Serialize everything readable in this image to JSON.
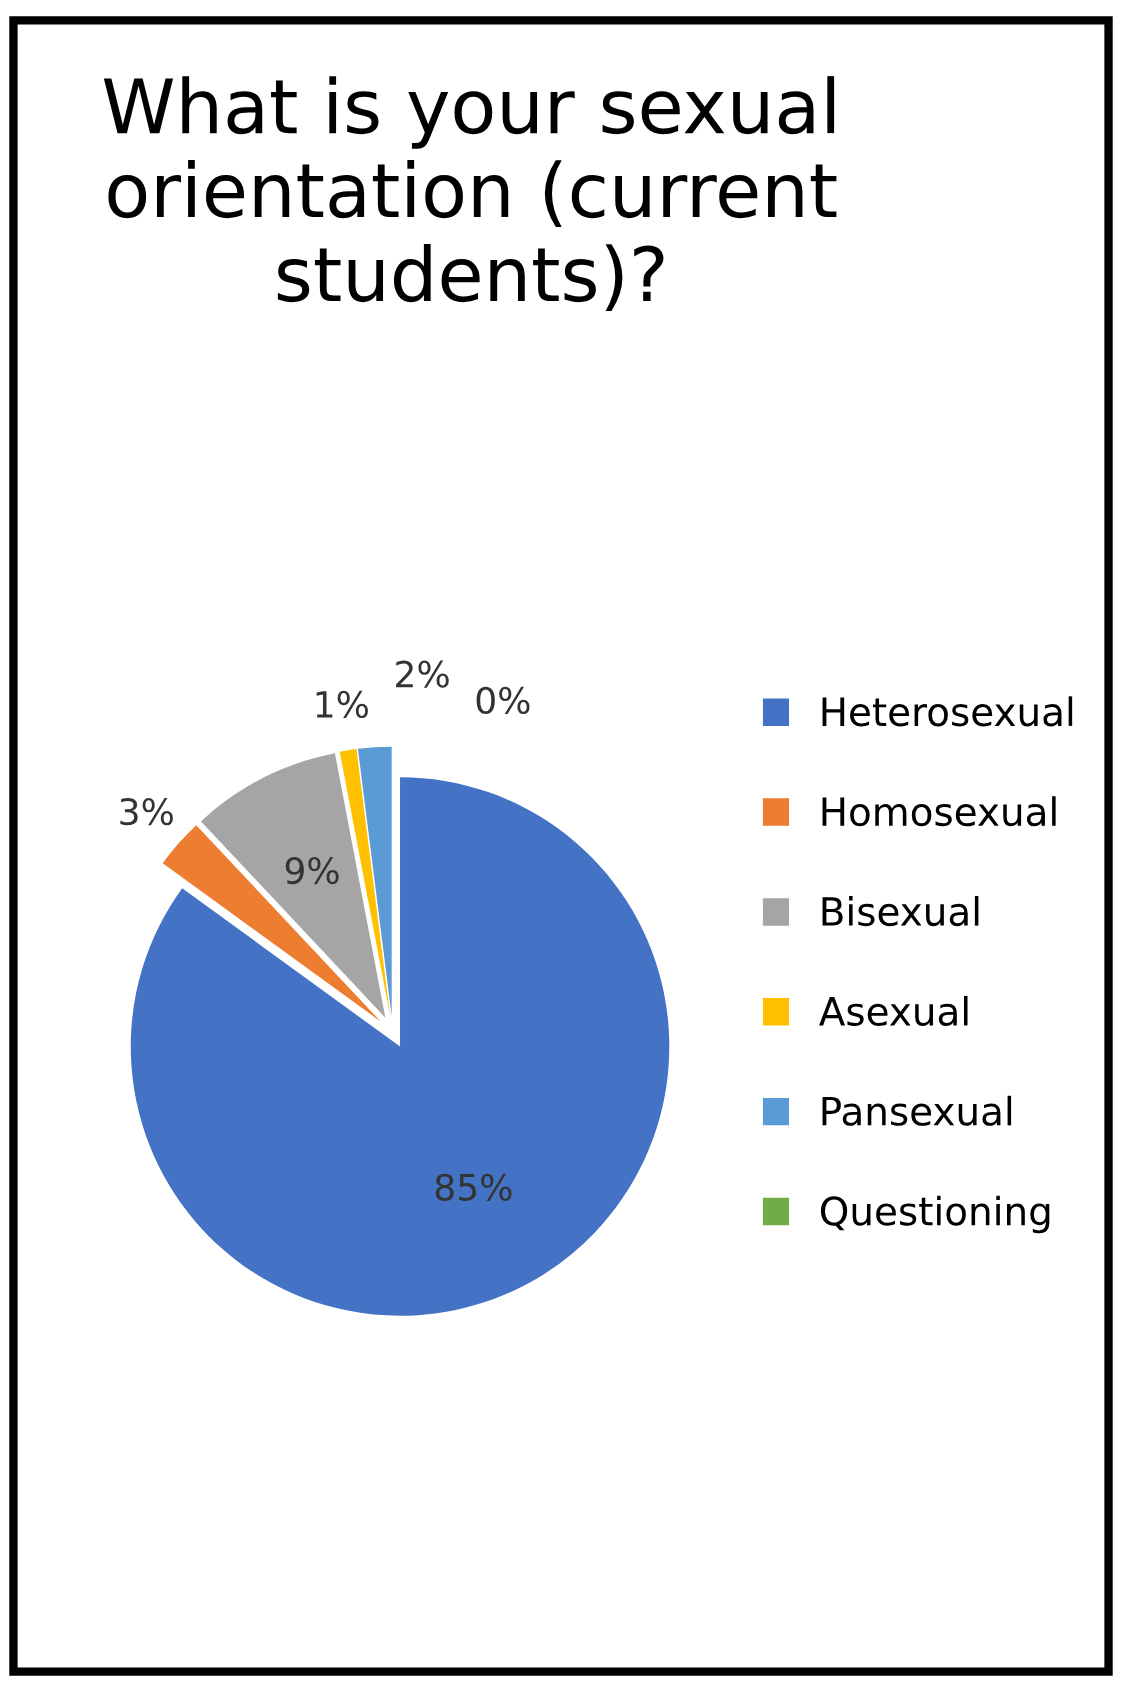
{
  "chart_data": {
    "type": "pie",
    "title": "What is your sexual orientation (current students)?",
    "categories": [
      "Heterosexual",
      "Homosexual",
      "Bisexual",
      "Asexual",
      "Pansexual",
      "Questioning"
    ],
    "values": [
      85,
      3,
      9,
      1,
      2,
      0
    ],
    "colors": [
      "#4472c4",
      "#ed7d31",
      "#a5a5a5",
      "#ffc000",
      "#5b9bd5",
      "#70ad47"
    ],
    "value_labels": [
      "85%",
      "3%",
      "9%",
      "1%",
      "2%",
      "0%"
    ],
    "legend": "right"
  }
}
